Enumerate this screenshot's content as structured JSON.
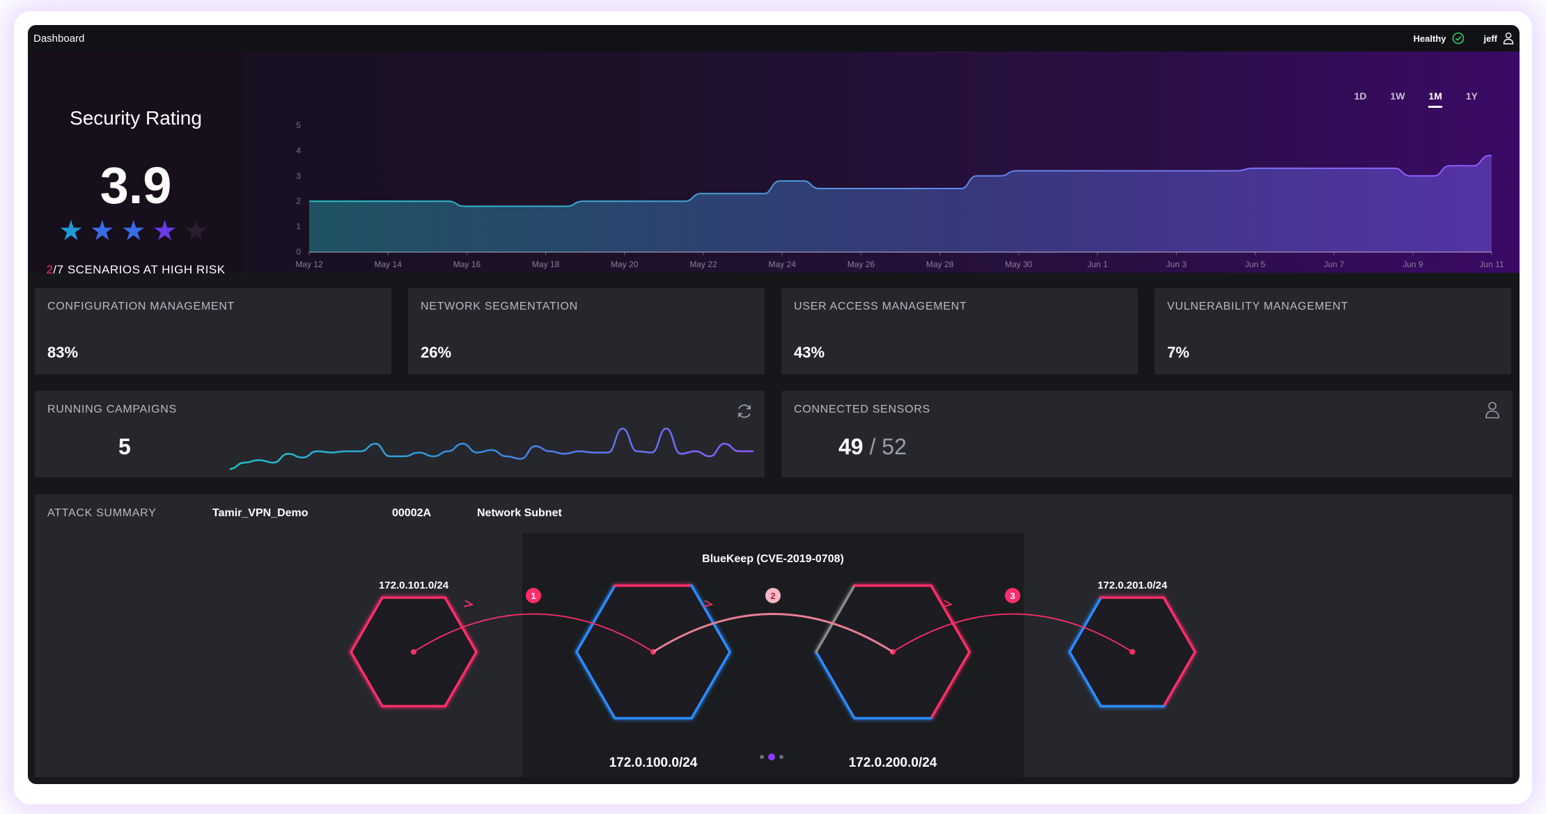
{
  "topbar": {
    "title": "Dashboard",
    "status": "Healthy",
    "user": "jeff"
  },
  "rating": {
    "title": "Security Rating",
    "value": "3.9",
    "stars_filled": 4,
    "stars_total": 5,
    "risk_count": "2",
    "risk_text": "/7 SCENARIOS AT HIGH RISK"
  },
  "ranges": [
    "1D",
    "1W",
    "1M",
    "1Y"
  ],
  "active_range": "1M",
  "chart_data": {
    "type": "area",
    "title": "",
    "xlabel": "",
    "ylabel": "",
    "ylim": [
      0,
      5
    ],
    "yticks": [
      0,
      1,
      2,
      3,
      4,
      5
    ],
    "xticks": [
      "May 12",
      "May 14",
      "May 16",
      "May 18",
      "May 20",
      "May 22",
      "May 24",
      "May 26",
      "May 28",
      "May 30",
      "Jun 1",
      "Jun 3",
      "Jun 5",
      "Jun 7",
      "Jun 9",
      "Jun 11"
    ],
    "x": [
      "May 12",
      "May 13",
      "May 14",
      "May 15",
      "May 16",
      "May 17",
      "May 18",
      "May 19",
      "May 20",
      "May 21",
      "May 22",
      "May 23",
      "May 24",
      "May 25",
      "May 26",
      "May 27",
      "May 28",
      "May 29",
      "May 30",
      "May 31",
      "Jun 1",
      "Jun 2",
      "Jun 3",
      "Jun 4",
      "Jun 5",
      "Jun 6",
      "Jun 7",
      "Jun 8",
      "Jun 9",
      "Jun 10",
      "Jun 11"
    ],
    "values": [
      2.0,
      2.0,
      2.0,
      2.0,
      1.8,
      1.8,
      1.8,
      2.0,
      2.0,
      2.0,
      2.3,
      2.3,
      2.8,
      2.5,
      2.5,
      2.5,
      2.5,
      3.0,
      3.2,
      3.2,
      3.2,
      3.2,
      3.2,
      3.2,
      3.3,
      3.3,
      3.3,
      3.3,
      3.0,
      3.4,
      3.8
    ],
    "grid": false,
    "legend": "none"
  },
  "metrics": [
    {
      "label": "CONFIGURATION MANAGEMENT",
      "value": "83%"
    },
    {
      "label": "NETWORK SEGMENTATION",
      "value": "26%"
    },
    {
      "label": "USER ACCESS MANAGEMENT",
      "value": "43%"
    },
    {
      "label": "VULNERABILITY MANAGEMENT",
      "value": "7%"
    }
  ],
  "campaigns": {
    "label": "RUNNING CAMPAIGNS",
    "value": "5",
    "sparkline": [
      0,
      0.5,
      0.7,
      0.5,
      1.2,
      0.9,
      1.4,
      1.3,
      1.4,
      1.4,
      2.0,
      1.0,
      1.0,
      1.3,
      1.0,
      1.4,
      2.0,
      1.3,
      1.5,
      1.0,
      0.8,
      1.8,
      1.4,
      1.2,
      1.4,
      1.3,
      1.3,
      3.2,
      1.4,
      1.3,
      3.2,
      1.2,
      1.4,
      1.0,
      2.0,
      1.4,
      1.4
    ]
  },
  "sensors": {
    "label": "CONNECTED SENSORS",
    "connected": "49",
    "separator": "/",
    "total": "52"
  },
  "attack": {
    "label": "ATTACK SUMMARY",
    "scenario": "Tamir_VPN_Demo",
    "id": "00002A",
    "type": "Network Subnet",
    "vulnerability": "BlueKeep (CVE-2019-0708)",
    "nodes": [
      "172.0.101.0/24",
      "172.0.100.0/24",
      "172.0.200.0/24",
      "172.0.201.0/24"
    ],
    "steps": [
      "1",
      "2",
      "3"
    ],
    "pages": 3,
    "active_page": 2
  },
  "colors": {
    "accent_red": "#ff2d6a",
    "accent_blue": "#2a8cff",
    "star_teal": "#1e9bd7",
    "star_blue": "#3a6be6",
    "star_purple": "#6a3ae6",
    "line_teal": "#21c3c8",
    "line_purple": "#8f5cff",
    "healthy_green": "#2bd46a"
  }
}
